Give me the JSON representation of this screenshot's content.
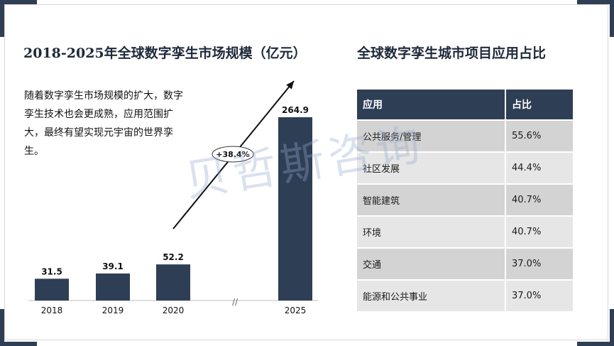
{
  "left": {
    "title": "2018-2025年全球数字孪生市场规模（亿元）",
    "description": "随着数字孪生市场规模的扩大，数字孪生技术也会更成熟，应用范围扩大，最终有望实现元宇宙的世界孪生。"
  },
  "right": {
    "title": "全球数字孪生城市项目应用占比"
  },
  "watermark": "贝哲斯咨询",
  "chart_data": {
    "type": "bar",
    "title": "2018-2025年全球数字孪生市场规模（亿元）",
    "categories": [
      "2018",
      "2019",
      "2020",
      "2025"
    ],
    "values": [
      31.5,
      39.1,
      52.2,
      264.9
    ],
    "value_labels": [
      "31.5",
      "39.1",
      "52.2",
      "264.9"
    ],
    "annotation": "+38.4%",
    "axis_break_label": "//",
    "bar_color": "#2e3e55"
  },
  "table": {
    "headers": [
      "应用",
      "占比"
    ],
    "rows": [
      [
        "公共服务/管理",
        "55.6%"
      ],
      [
        "社区发展",
        "44.4%"
      ],
      [
        "智能建筑",
        "40.7%"
      ],
      [
        "环境",
        "40.7%"
      ],
      [
        "交通",
        "37.0%"
      ],
      [
        "能源和公共事业",
        "37.0%"
      ]
    ]
  }
}
